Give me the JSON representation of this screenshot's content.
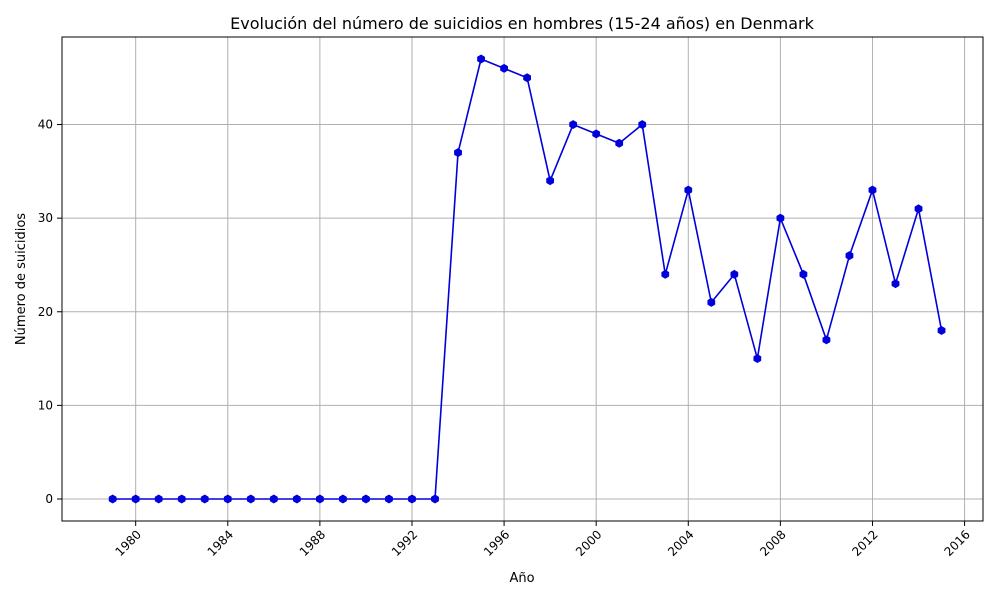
{
  "chart_data": {
    "type": "line",
    "title": "Evolución del número de suicidios en hombres (15-24 años) en Denmark",
    "xlabel": "Año",
    "ylabel": "Número de suicidios",
    "x": [
      1979,
      1980,
      1981,
      1982,
      1983,
      1984,
      1985,
      1986,
      1987,
      1988,
      1989,
      1990,
      1991,
      1992,
      1993,
      1994,
      1995,
      1996,
      1997,
      1998,
      1999,
      2000,
      2001,
      2002,
      2003,
      2004,
      2005,
      2006,
      2007,
      2008,
      2009,
      2010,
      2011,
      2012,
      2013,
      2014,
      2015
    ],
    "series": [
      {
        "values": [
          0,
          0,
          0,
          0,
          0,
          0,
          0,
          0,
          0,
          0,
          0,
          0,
          0,
          0,
          0,
          37,
          47,
          46,
          45,
          34,
          40,
          39,
          38,
          40,
          24,
          33,
          21,
          24,
          15,
          30,
          24,
          17,
          26,
          33,
          23,
          31,
          18
        ],
        "color": "#0000dd",
        "marker": "hexagon"
      }
    ],
    "xlim": [
      1976.8,
      2016.8
    ],
    "ylim": [
      -2.35,
      49.35
    ],
    "xticks": [
      "1980",
      "1984",
      "1988",
      "1992",
      "1996",
      "2000",
      "2004",
      "2008",
      "2012",
      "2016"
    ],
    "yticks": [
      "0",
      "10",
      "20",
      "30",
      "40"
    ],
    "xtick_rotation": 45,
    "grid": true,
    "legend": "none"
  }
}
